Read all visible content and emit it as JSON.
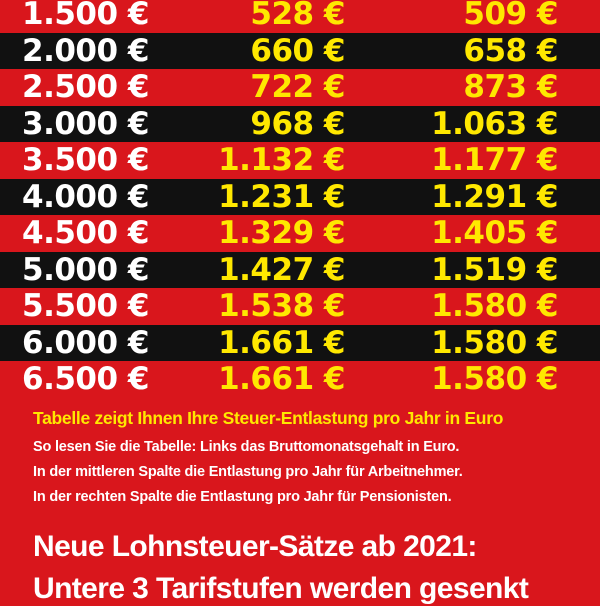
{
  "table": {
    "rows": [
      {
        "salary": "1.500 €",
        "employee": "528 €",
        "pensioner": "509 €"
      },
      {
        "salary": "2.000 €",
        "employee": "660 €",
        "pensioner": "658 €"
      },
      {
        "salary": "2.500 €",
        "employee": "722 €",
        "pensioner": "873 €"
      },
      {
        "salary": "3.000 €",
        "employee": "968 €",
        "pensioner": "1.063 €"
      },
      {
        "salary": "3.500 €",
        "employee": "1.132 €",
        "pensioner": "1.177 €"
      },
      {
        "salary": "4.000 €",
        "employee": "1.231 €",
        "pensioner": "1.291 €"
      },
      {
        "salary": "4.500 €",
        "employee": "1.329 €",
        "pensioner": "1.405 €"
      },
      {
        "salary": "5.000 €",
        "employee": "1.427 €",
        "pensioner": "1.519 €"
      },
      {
        "salary": "5.500 €",
        "employee": "1.538 €",
        "pensioner": "1.580 €"
      },
      {
        "salary": "6.000 €",
        "employee": "1.661 €",
        "pensioner": "1.580 €"
      },
      {
        "salary": "6.500 €",
        "employee": "1.661 €",
        "pensioner": "1.580 €"
      }
    ]
  },
  "caption": "Tabelle zeigt Ihnen Ihre Steuer-Entlastung pro Jahr in Euro",
  "info_lines": [
    "So lesen Sie die Tabelle: Links das Bruttomonatsgehalt in Euro.",
    "In der mittleren Spalte die Entlastung pro Jahr für Arbeitnehmer.",
    "In der rechten Spalte die Entlastung pro Jahr für Pensionisten."
  ],
  "headline_lines": [
    "Neue Lohnsteuer-Sätze ab 2021:",
    "Untere 3 Tarifstufen werden gesenkt"
  ],
  "colors": {
    "background_red": "#d9161c",
    "row_dark": "#111111",
    "highlight_yellow": "#ffe800",
    "text_white": "#ffffff"
  }
}
